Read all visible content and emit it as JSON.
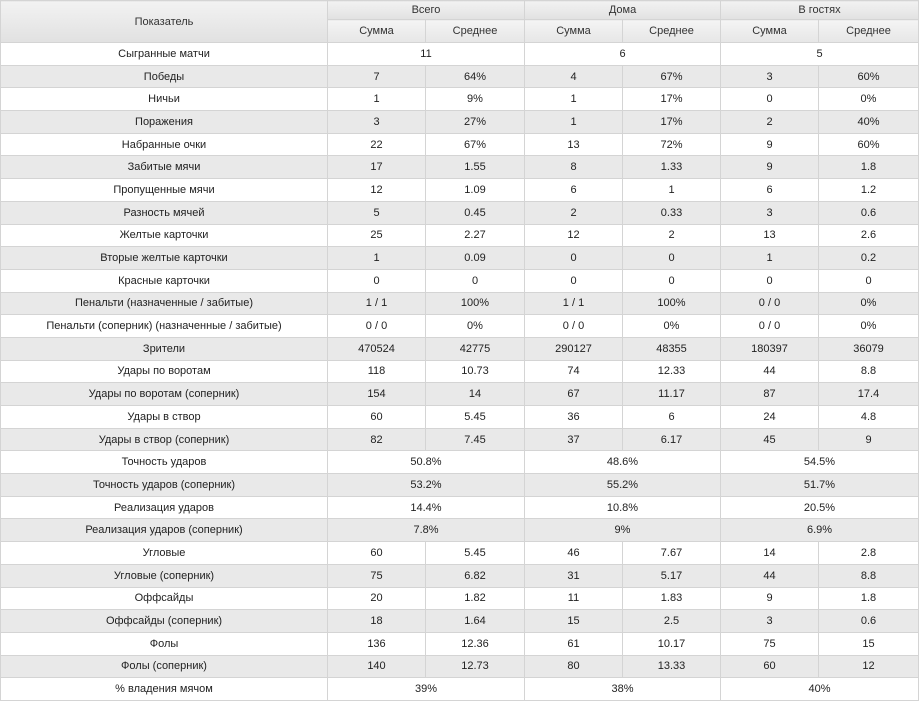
{
  "header": {
    "indicator": "Показатель",
    "groups": [
      "Всего",
      "Дома",
      "В гостях"
    ],
    "sub": [
      "Сумма",
      "Среднее"
    ]
  },
  "rows": [
    {
      "label": "Сыгранные матчи",
      "merged": true,
      "vals": [
        "11",
        "6",
        "5"
      ]
    },
    {
      "label": "Победы",
      "merged": false,
      "vals": [
        "7",
        "64%",
        "4",
        "67%",
        "3",
        "60%"
      ]
    },
    {
      "label": "Ничьи",
      "merged": false,
      "vals": [
        "1",
        "9%",
        "1",
        "17%",
        "0",
        "0%"
      ]
    },
    {
      "label": "Поражения",
      "merged": false,
      "vals": [
        "3",
        "27%",
        "1",
        "17%",
        "2",
        "40%"
      ]
    },
    {
      "label": "Набранные очки",
      "merged": false,
      "vals": [
        "22",
        "67%",
        "13",
        "72%",
        "9",
        "60%"
      ]
    },
    {
      "label": "Забитые мячи",
      "merged": false,
      "vals": [
        "17",
        "1.55",
        "8",
        "1.33",
        "9",
        "1.8"
      ]
    },
    {
      "label": "Пропущенные мячи",
      "merged": false,
      "vals": [
        "12",
        "1.09",
        "6",
        "1",
        "6",
        "1.2"
      ]
    },
    {
      "label": "Разность мячей",
      "merged": false,
      "vals": [
        "5",
        "0.45",
        "2",
        "0.33",
        "3",
        "0.6"
      ]
    },
    {
      "label": "Желтые карточки",
      "merged": false,
      "vals": [
        "25",
        "2.27",
        "12",
        "2",
        "13",
        "2.6"
      ]
    },
    {
      "label": "Вторые желтые карточки",
      "merged": false,
      "vals": [
        "1",
        "0.09",
        "0",
        "0",
        "1",
        "0.2"
      ]
    },
    {
      "label": "Красные карточки",
      "merged": false,
      "vals": [
        "0",
        "0",
        "0",
        "0",
        "0",
        "0"
      ]
    },
    {
      "label": "Пенальти (назначенные / забитые)",
      "merged": false,
      "vals": [
        "1 / 1",
        "100%",
        "1 / 1",
        "100%",
        "0 / 0",
        "0%"
      ]
    },
    {
      "label": "Пенальти (соперник) (назначенные / забитые)",
      "merged": false,
      "vals": [
        "0 / 0",
        "0%",
        "0 / 0",
        "0%",
        "0 / 0",
        "0%"
      ]
    },
    {
      "label": "Зрители",
      "merged": false,
      "vals": [
        "470524",
        "42775",
        "290127",
        "48355",
        "180397",
        "36079"
      ]
    },
    {
      "label": "Удары по воротам",
      "merged": false,
      "vals": [
        "118",
        "10.73",
        "74",
        "12.33",
        "44",
        "8.8"
      ]
    },
    {
      "label": "Удары по воротам (соперник)",
      "merged": false,
      "vals": [
        "154",
        "14",
        "67",
        "11.17",
        "87",
        "17.4"
      ]
    },
    {
      "label": "Удары в створ",
      "merged": false,
      "vals": [
        "60",
        "5.45",
        "36",
        "6",
        "24",
        "4.8"
      ]
    },
    {
      "label": "Удары в створ (соперник)",
      "merged": false,
      "vals": [
        "82",
        "7.45",
        "37",
        "6.17",
        "45",
        "9"
      ]
    },
    {
      "label": "Точность ударов",
      "merged": true,
      "vals": [
        "50.8%",
        "48.6%",
        "54.5%"
      ]
    },
    {
      "label": "Точность ударов (соперник)",
      "merged": true,
      "vals": [
        "53.2%",
        "55.2%",
        "51.7%"
      ]
    },
    {
      "label": "Реализация ударов",
      "merged": true,
      "vals": [
        "14.4%",
        "10.8%",
        "20.5%"
      ]
    },
    {
      "label": "Реализация ударов (соперник)",
      "merged": true,
      "vals": [
        "7.8%",
        "9%",
        "6.9%"
      ]
    },
    {
      "label": "Угловые",
      "merged": false,
      "vals": [
        "60",
        "5.45",
        "46",
        "7.67",
        "14",
        "2.8"
      ]
    },
    {
      "label": "Угловые (соперник)",
      "merged": false,
      "vals": [
        "75",
        "6.82",
        "31",
        "5.17",
        "44",
        "8.8"
      ]
    },
    {
      "label": "Оффсайды",
      "merged": false,
      "vals": [
        "20",
        "1.82",
        "11",
        "1.83",
        "9",
        "1.8"
      ]
    },
    {
      "label": "Оффсайды (соперник)",
      "merged": false,
      "vals": [
        "18",
        "1.64",
        "15",
        "2.5",
        "3",
        "0.6"
      ]
    },
    {
      "label": "Фолы",
      "merged": false,
      "vals": [
        "136",
        "12.36",
        "61",
        "10.17",
        "75",
        "15"
      ]
    },
    {
      "label": "Фолы (соперник)",
      "merged": false,
      "vals": [
        "140",
        "12.73",
        "80",
        "13.33",
        "60",
        "12"
      ]
    },
    {
      "label": "% владения мячом",
      "merged": true,
      "vals": [
        "39%",
        "38%",
        "40%"
      ]
    }
  ]
}
